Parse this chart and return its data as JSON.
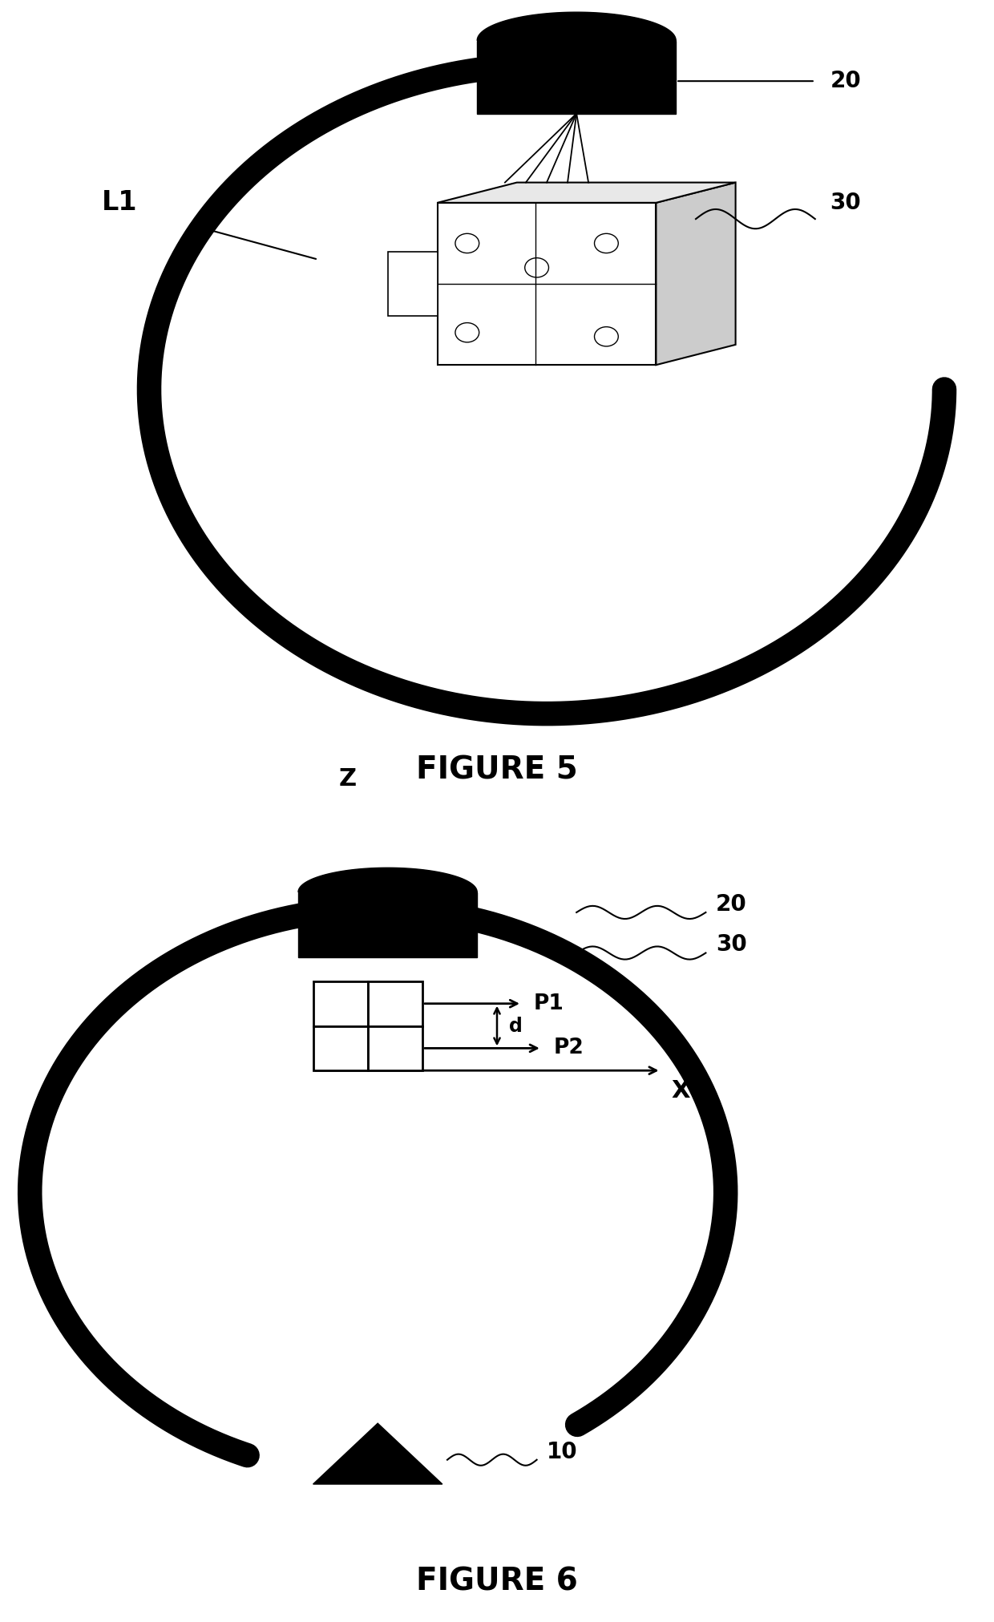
{
  "bg_color": "#ffffff",
  "fig_width": 12.4,
  "fig_height": 20.23,
  "fig5_title": "FIGURE 5",
  "fig6_title": "FIGURE 6",
  "label_L1": "L1",
  "label_20_fig5": "20",
  "label_30_fig5": "30",
  "label_20_fig6": "20",
  "label_30_fig6": "30",
  "label_10": "10",
  "label_Z": "Z",
  "label_X": "X",
  "label_P1": "P1",
  "label_P2": "P2",
  "label_d": "d",
  "arc_lw": 22,
  "arc_color": "#000000"
}
